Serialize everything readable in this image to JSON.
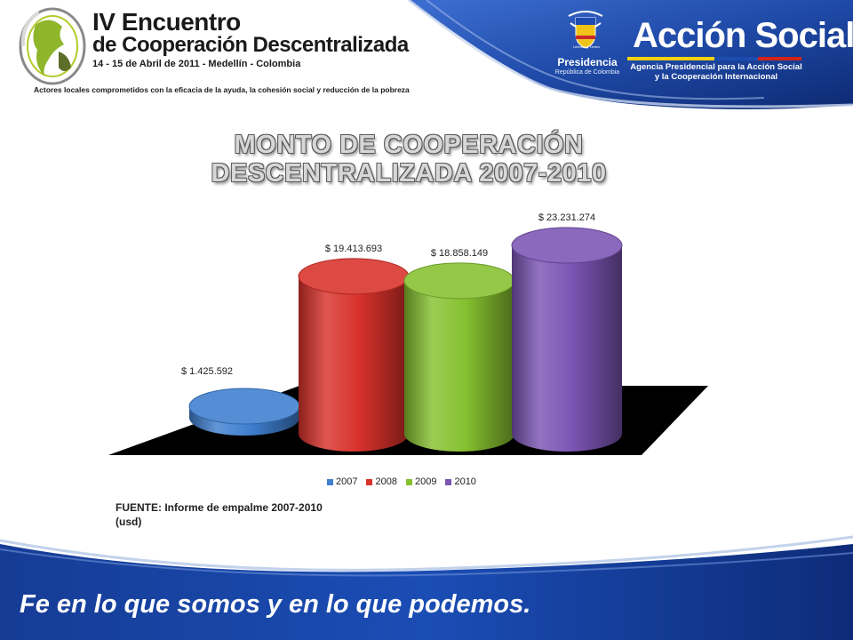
{
  "header": {
    "event_title_line1": "IV Encuentro",
    "event_title_line2": "de Cooperación Descentralizada",
    "event_dates": "14 - 15 de Abril de 2011 - Medellín - Colombia",
    "event_subtitle": "Actores locales comprometidos con la eficacia de la ayuda, la cohesión social y reducción de la pobreza",
    "presidencia_small": "Libertad y Orden",
    "presidencia_label": "Presidencia",
    "presidencia_sub": "República de Colombia",
    "brand_name": "Acción Social",
    "brand_line1": "Agencia Presidencial para la Acción Social",
    "brand_line2": "y la Cooperación Internacional"
  },
  "chart_data": {
    "type": "bar",
    "style": "3d-cylinder",
    "title": "MONTO DE COOPERACIÓN DESCENTRALIZADA 2007-2010",
    "categories": [
      "2007",
      "2008",
      "2009",
      "2010"
    ],
    "values": [
      1425592,
      19413693,
      18858149,
      23231274
    ],
    "value_labels": [
      "$ 1.425.592",
      "$ 19.413.693",
      "$ 18.858.149",
      "$ 23.231.274"
    ],
    "colors": [
      "#3f7fd0",
      "#d8312b",
      "#86c130",
      "#7b55b4"
    ],
    "legend": [
      "2007",
      "2008",
      "2009",
      "2010"
    ],
    "legend_position": "bottom",
    "floor_color": "#000000",
    "grid": false
  },
  "source": {
    "line1": "FUENTE: Informe de empalme 2007-2010",
    "line2": "(usd)"
  },
  "footer": {
    "slogan": "Fe en lo que somos y en lo que podemos."
  }
}
